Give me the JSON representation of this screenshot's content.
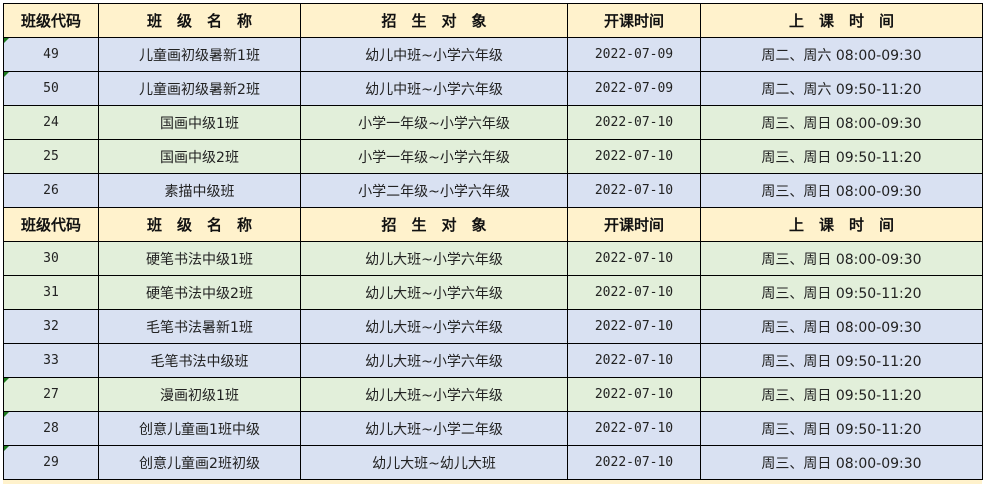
{
  "headers": [
    "班级代码",
    "班　级　名　称",
    "招　生　对　象",
    "开课时间",
    "上　课　时　间"
  ],
  "rows": [
    {
      "type": "row",
      "color": "blue",
      "marker": true,
      "cells": [
        "49",
        "儿童画初级暑新1班",
        "幼儿中班~小学六年级",
        "2022-07-09",
        "周二、周六 08:00-09:30"
      ]
    },
    {
      "type": "row",
      "color": "blue",
      "marker": true,
      "cells": [
        "50",
        "儿童画初级暑新2班",
        "幼儿中班~小学六年级",
        "2022-07-09",
        "周二、周六 09:50-11:20"
      ]
    },
    {
      "type": "row",
      "color": "green",
      "marker": false,
      "cells": [
        "24",
        "国画中级1班",
        "小学一年级~小学六年级",
        "2022-07-10",
        "周三、周日 08:00-09:30"
      ]
    },
    {
      "type": "row",
      "color": "green",
      "marker": false,
      "cells": [
        "25",
        "国画中级2班",
        "小学一年级~小学六年级",
        "2022-07-10",
        "周三、周日 09:50-11:20"
      ]
    },
    {
      "type": "row",
      "color": "blue",
      "marker": false,
      "cells": [
        "26",
        "素描中级班",
        "小学二年级~小学六年级",
        "2022-07-10",
        "周三、周日 08:00-09:30"
      ]
    },
    {
      "type": "header",
      "cells": [
        "班级代码",
        "班　级　名　称",
        "招　生　对　象",
        "开课时间",
        "上　课　时　间"
      ]
    },
    {
      "type": "row",
      "color": "green",
      "marker": false,
      "cells": [
        "30",
        "硬笔书法中级1班",
        "幼儿大班~小学六年级",
        "2022-07-10",
        "周三、周日 08:00-09:30"
      ]
    },
    {
      "type": "row",
      "color": "green",
      "marker": false,
      "cells": [
        "31",
        "硬笔书法中级2班",
        "幼儿大班~小学六年级",
        "2022-07-10",
        "周三、周日 09:50-11:20"
      ]
    },
    {
      "type": "row",
      "color": "blue",
      "marker": false,
      "cells": [
        "32",
        "毛笔书法暑新1班",
        "幼儿大班~小学六年级",
        "2022-07-10",
        "周三、周日 08:00-09:30"
      ]
    },
    {
      "type": "row",
      "color": "blue",
      "marker": false,
      "cells": [
        "33",
        "毛笔书法中级班",
        "幼儿大班~小学六年级",
        "2022-07-10",
        "周三、周日 09:50-11:20"
      ]
    },
    {
      "type": "row",
      "color": "green",
      "marker": true,
      "cells": [
        "27",
        "漫画初级1班",
        "幼儿大班~小学六年级",
        "2022-07-10",
        "周三、周日 09:50-11:20"
      ]
    },
    {
      "type": "row",
      "color": "blue",
      "marker": true,
      "cells": [
        "28",
        "创意儿童画1班中级",
        "幼儿大班~小学二年级",
        "2022-07-10",
        "周三、周日 09:50-11:20"
      ]
    },
    {
      "type": "row",
      "color": "blue",
      "marker": true,
      "cells": [
        "29",
        "创意儿童画2班初级",
        "幼儿大班~幼儿大班",
        "2022-07-10",
        "周三、周日 08:00-09:30"
      ]
    }
  ],
  "colors": {
    "header": "#FFF2CC",
    "blue": "#D9E1F2",
    "green": "#E2EFDA",
    "marker": "#1E7B1E"
  }
}
